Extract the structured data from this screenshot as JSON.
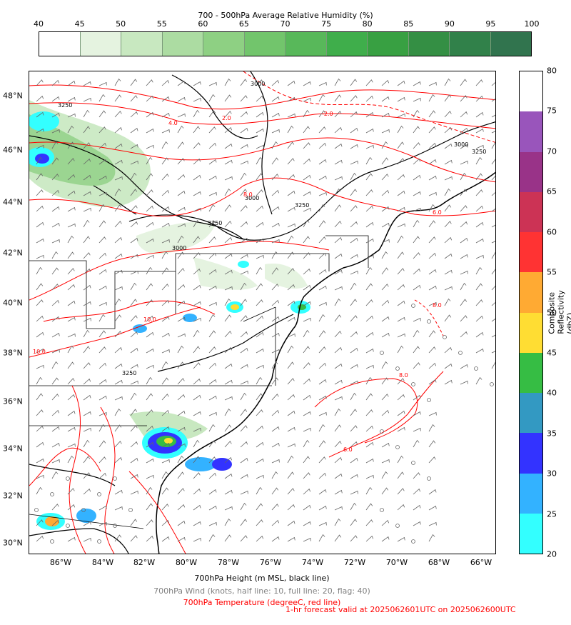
{
  "rh_colorbar": {
    "title": "700 - 500hPa Average Relative Humidity (%)",
    "ticks": [
      "40",
      "45",
      "50",
      "55",
      "60",
      "65",
      "70",
      "75",
      "80",
      "85",
      "90",
      "95",
      "100"
    ],
    "colors": [
      "#ffffff",
      "#e5f3e0",
      "#c8e8c0",
      "#acdca2",
      "#8ed083",
      "#72c56c",
      "#58b85a",
      "#3fae4b",
      "#38a042",
      "#348f44",
      "#31814a",
      "#31744e"
    ]
  },
  "dbz_colorbar": {
    "title": "Composite Reflectivity (dbZ)",
    "ticks": [
      "20",
      "25",
      "30",
      "35",
      "40",
      "45",
      "50",
      "55",
      "60",
      "65",
      "70",
      "75",
      "80"
    ],
    "colors": [
      "#33ffff",
      "#33b2ff",
      "#3333ff",
      "#3399c2",
      "#36bd44",
      "#ffdd33",
      "#ffaa33",
      "#ff3333",
      "#cc3355",
      "#993388",
      "#9955bb",
      "#ffffff"
    ]
  },
  "map": {
    "lat_labels": [
      "48°N",
      "46°N",
      "44°N",
      "42°N",
      "40°N",
      "38°N",
      "36°N",
      "34°N",
      "32°N",
      "30°N"
    ],
    "lon_labels": [
      "86°W",
      "84°W",
      "82°W",
      "80°W",
      "78°W",
      "76°W",
      "74°W",
      "72°W",
      "70°W",
      "68°W",
      "66°W"
    ],
    "height_contour_labels": [
      "3000",
      "3000",
      "3000",
      "3000",
      "3250",
      "3250",
      "3250",
      "3250",
      "3250"
    ],
    "temp_contour_labels": [
      "4.0",
      "2.0",
      "-2.0",
      "6.0",
      "8.0",
      "10.0",
      "8.0",
      "6.0",
      "10.0",
      "8.0"
    ]
  },
  "footer": {
    "height_line": "700hPa Height (m MSL, black line)",
    "wind_line": "700hPa Wind (knots, half line: 10, full line: 20, flag: 40)",
    "temp_line": "700hPa Temperature (degreeC, red line)",
    "valid_line": "1-hr forecast valid at 2025062601UTC on 2025062600UTC"
  },
  "colors": {
    "height": "#000000",
    "wind": "#808080",
    "temperature": "#ff0000",
    "footer_valid": "#ff0000"
  }
}
